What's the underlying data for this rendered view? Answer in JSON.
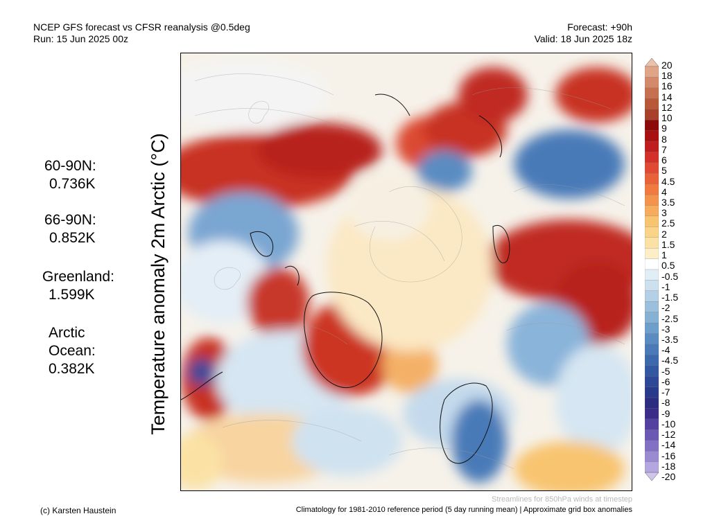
{
  "header": {
    "line1_left": "NCEP GFS forecast vs CFSR reanalysis @0.5deg",
    "line2_left": "Run: 15 Jun 2025 00z",
    "line1_right": "Forecast: +90h",
    "line2_right": "Valid: 18 Jun 2025 18z"
  },
  "y_axis_label": "Temperature anomaly 2m Arctic (°C)",
  "stats": [
    {
      "label": "60-90N:",
      "value": "0.736K"
    },
    {
      "label": "66-90N:",
      "value": "0.852K"
    },
    {
      "label": "Greenland:",
      "value": "1.599K"
    },
    {
      "label": "Arctic Ocean:",
      "value": "0.382K"
    }
  ],
  "colorbar": {
    "ticks": [
      "20",
      "18",
      "16",
      "14",
      "12",
      "10",
      "9",
      "8",
      "7",
      "6",
      "5",
      "4.5",
      "4",
      "3.5",
      "3",
      "2.5",
      "2",
      "1.5",
      "1",
      "0.5",
      "-0.5",
      "-1",
      "-1.5",
      "-2",
      "-2.5",
      "-3",
      "-3.5",
      "-4",
      "-4.5",
      "-5",
      "-6",
      "-7",
      "-8",
      "-9",
      "-10",
      "-12",
      "-14",
      "-16",
      "-18",
      "-20"
    ],
    "colors": [
      "#eec0a8",
      "#e0a486",
      "#d48a6a",
      "#c67050",
      "#b85838",
      "#a8402a",
      "#8c0a0a",
      "#a81010",
      "#c01e1e",
      "#d23028",
      "#e04a32",
      "#ea6238",
      "#f07a40",
      "#f4944c",
      "#f6ac5c",
      "#f8c470",
      "#fad488",
      "#fbe2a4",
      "#fcefc8",
      "#ffffff",
      "#e2eef6",
      "#cce0ee",
      "#b4d0e6",
      "#9cc0dc",
      "#86b0d4",
      "#6e9ecc",
      "#5a8cc2",
      "#4a7ab8",
      "#3c68ae",
      "#3258a2",
      "#2c4896",
      "#2a3a8a",
      "#2c2c80",
      "#3a2c88",
      "#5440a0",
      "#6a58b4",
      "#8270c4",
      "#9a8ad2",
      "#b4a6e0",
      "#cec4ec"
    ]
  },
  "footnote": "Streamlines for 850hPa winds at timestep",
  "credit": "(c) Karsten Haustein",
  "climatology": "Climatology for 1981-2010 reference period (5 day running mean) | Approximate grid box anomalies"
}
